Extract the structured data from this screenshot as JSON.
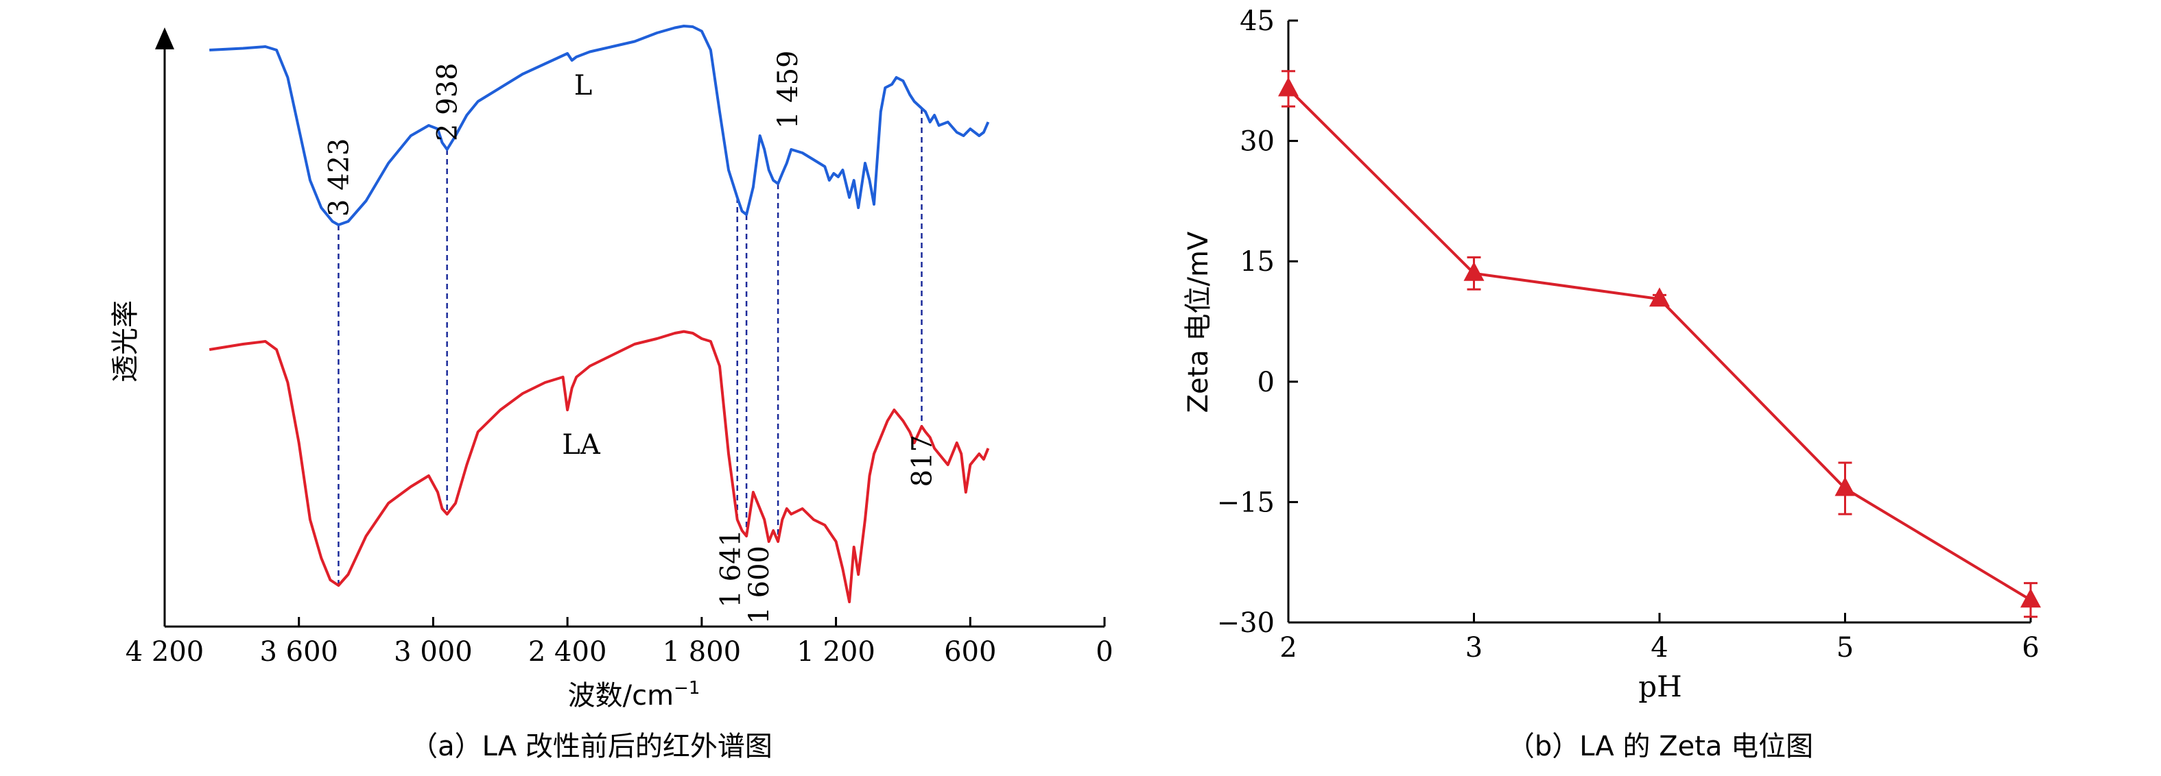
{
  "chart_data": [
    {
      "id": "ir",
      "type": "line",
      "caption": "（a）LA 改性前后的红外谱图",
      "xlabel": "波数/cm",
      "xlabel_sup": "−1",
      "ylabel": "透光率",
      "xlim": [
        4200,
        0
      ],
      "x_reversed": true,
      "xticks": [
        4200,
        3600,
        3000,
        2400,
        1800,
        1200,
        600,
        0
      ],
      "xtick_labels": [
        "4 200",
        "3 600",
        "3 000",
        "2 400",
        "1 800",
        "1 200",
        "600",
        "0"
      ],
      "y_axis_arrow": true,
      "y_scale": "arbitrary transmittance units (no ticks printed)",
      "series": [
        {
          "name": "L",
          "color": "#1f5fd9",
          "x": [
            4000,
            3850,
            3750,
            3700,
            3650,
            3600,
            3550,
            3500,
            3450,
            3423,
            3380,
            3300,
            3200,
            3100,
            3020,
            2980,
            2960,
            2938,
            2900,
            2850,
            2800,
            2700,
            2600,
            2500,
            2400,
            2380,
            2360,
            2300,
            2200,
            2100,
            2000,
            1920,
            1880,
            1840,
            1800,
            1760,
            1720,
            1680,
            1641,
            1620,
            1600,
            1570,
            1540,
            1520,
            1500,
            1480,
            1459,
            1440,
            1420,
            1400,
            1350,
            1300,
            1250,
            1230,
            1210,
            1190,
            1170,
            1140,
            1120,
            1100,
            1070,
            1050,
            1030,
            1000,
            980,
            950,
            930,
            900,
            870,
            850,
            817,
            800,
            780,
            760,
            740,
            700,
            660,
            630,
            600,
            560,
            540,
            520
          ],
          "y": [
            93,
            93.5,
            94,
            93,
            85,
            70,
            55,
            47,
            43,
            42,
            43,
            49,
            60,
            68,
            71,
            70,
            66,
            64,
            68,
            74,
            78,
            82,
            86,
            89,
            92,
            90,
            91,
            92.5,
            94,
            95.5,
            98,
            99.5,
            100,
            99.8,
            98.5,
            93,
            75,
            58,
            50,
            46,
            45,
            53,
            68,
            64,
            58,
            55,
            54,
            57,
            60,
            64,
            63,
            61,
            59,
            55,
            57,
            56,
            58,
            50,
            55,
            47,
            60,
            55,
            48,
            75,
            82,
            83,
            85,
            84,
            80,
            78,
            76,
            75,
            72,
            74,
            71,
            72,
            69,
            68,
            70,
            68,
            69,
            72
          ]
        },
        {
          "name": "LA",
          "color": "#e0202a",
          "x": [
            4000,
            3850,
            3750,
            3700,
            3650,
            3600,
            3550,
            3500,
            3460,
            3423,
            3380,
            3300,
            3200,
            3100,
            3020,
            2980,
            2960,
            2938,
            2900,
            2850,
            2800,
            2700,
            2600,
            2500,
            2420,
            2400,
            2380,
            2360,
            2300,
            2200,
            2100,
            2000,
            1920,
            1880,
            1840,
            1800,
            1760,
            1720,
            1680,
            1641,
            1620,
            1600,
            1570,
            1540,
            1520,
            1500,
            1480,
            1459,
            1440,
            1420,
            1400,
            1350,
            1300,
            1250,
            1200,
            1170,
            1140,
            1120,
            1100,
            1070,
            1050,
            1030,
            1000,
            970,
            940,
            900,
            870,
            850,
            817,
            800,
            780,
            760,
            740,
            700,
            660,
            640,
            620,
            600,
            560,
            540,
            520
          ],
          "y": [
            41,
            42,
            42.5,
            41,
            35,
            24,
            10,
            3,
            -1,
            -2,
            0,
            7,
            13,
            16,
            18,
            15,
            12,
            11,
            13,
            20,
            26,
            30,
            33,
            35,
            36,
            30,
            34,
            36,
            38,
            40,
            42,
            43,
            44,
            44.3,
            44,
            43,
            42.5,
            38,
            22,
            10,
            8,
            7,
            15,
            12,
            10,
            6,
            8,
            6,
            10,
            12,
            11,
            12,
            10,
            9,
            6,
            1,
            -5,
            5,
            0,
            10,
            18,
            22,
            25,
            28,
            30,
            28,
            26,
            24,
            27,
            26,
            25,
            23,
            22,
            20,
            24,
            22,
            15,
            20,
            22,
            21,
            23
          ]
        }
      ],
      "annotations": [
        {
          "text": "3 423",
          "x": 3423
        },
        {
          "text": "2 938",
          "x": 2938
        },
        {
          "text": "1 641",
          "x": 1641
        },
        {
          "text": "1 600",
          "x": 1600
        },
        {
          "text": "1 459",
          "x": 1459
        },
        {
          "text": "817",
          "x": 817
        }
      ],
      "curve_labels": [
        "L",
        "LA"
      ],
      "reference_lines": "dashed vertical lines at each annotated wavenumber"
    },
    {
      "id": "zeta",
      "type": "line",
      "caption": "（b）LA 的 Zeta 电位图",
      "xlabel": "pH",
      "ylabel": "Zeta 电位/mV",
      "xlim": [
        2,
        6
      ],
      "ylim": [
        -30,
        45
      ],
      "xticks": [
        2,
        3,
        4,
        5,
        6
      ],
      "yticks": [
        -30,
        -15,
        0,
        15,
        30,
        45
      ],
      "xtick_labels": [
        "2",
        "3",
        "4",
        "5",
        "6"
      ],
      "ytick_labels": [
        "−30",
        "−15",
        "0",
        "15",
        "30",
        "45"
      ],
      "marker": "triangle",
      "color": "#d8202a",
      "x": [
        2,
        3,
        4,
        5,
        6
      ],
      "y": [
        36.5,
        13.5,
        10.3,
        -13.3,
        -27.2
      ],
      "error": [
        2.2,
        2.0,
        0.5,
        3.2,
        2.1
      ]
    }
  ]
}
